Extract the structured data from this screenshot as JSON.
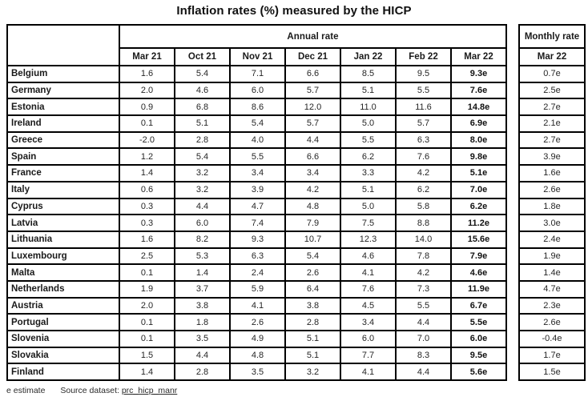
{
  "title": "Inflation rates (%) measured by the HICP",
  "annual": {
    "group_header": "Annual rate",
    "columns": [
      "Mar 21",
      "Oct 21",
      "Nov 21",
      "Dec 21",
      "Jan 22",
      "Feb 22",
      "Mar 22"
    ]
  },
  "monthly": {
    "group_header": "Monthly rate",
    "column": "Mar 22"
  },
  "rows": [
    {
      "country": "Belgium",
      "annual": [
        "1.6",
        "5.4",
        "7.1",
        "6.6",
        "8.5",
        "9.5",
        "9.3e"
      ],
      "monthly": "0.7e"
    },
    {
      "country": "Germany",
      "annual": [
        "2.0",
        "4.6",
        "6.0",
        "5.7",
        "5.1",
        "5.5",
        "7.6e"
      ],
      "monthly": "2.5e"
    },
    {
      "country": "Estonia",
      "annual": [
        "0.9",
        "6.8",
        "8.6",
        "12.0",
        "11.0",
        "11.6",
        "14.8e"
      ],
      "monthly": "2.7e"
    },
    {
      "country": "Ireland",
      "annual": [
        "0.1",
        "5.1",
        "5.4",
        "5.7",
        "5.0",
        "5.7",
        "6.9e"
      ],
      "monthly": "2.1e"
    },
    {
      "country": "Greece",
      "annual": [
        "-2.0",
        "2.8",
        "4.0",
        "4.4",
        "5.5",
        "6.3",
        "8.0e"
      ],
      "monthly": "2.7e"
    },
    {
      "country": "Spain",
      "annual": [
        "1.2",
        "5.4",
        "5.5",
        "6.6",
        "6.2",
        "7.6",
        "9.8e"
      ],
      "monthly": "3.9e"
    },
    {
      "country": "France",
      "annual": [
        "1.4",
        "3.2",
        "3.4",
        "3.4",
        "3.3",
        "4.2",
        "5.1e"
      ],
      "monthly": "1.6e"
    },
    {
      "country": "Italy",
      "annual": [
        "0.6",
        "3.2",
        "3.9",
        "4.2",
        "5.1",
        "6.2",
        "7.0e"
      ],
      "monthly": "2.6e"
    },
    {
      "country": "Cyprus",
      "annual": [
        "0.3",
        "4.4",
        "4.7",
        "4.8",
        "5.0",
        "5.8",
        "6.2e"
      ],
      "monthly": "1.8e"
    },
    {
      "country": "Latvia",
      "annual": [
        "0.3",
        "6.0",
        "7.4",
        "7.9",
        "7.5",
        "8.8",
        "11.2e"
      ],
      "monthly": "3.0e"
    },
    {
      "country": "Lithuania",
      "annual": [
        "1.6",
        "8.2",
        "9.3",
        "10.7",
        "12.3",
        "14.0",
        "15.6e"
      ],
      "monthly": "2.4e"
    },
    {
      "country": "Luxembourg",
      "annual": [
        "2.5",
        "5.3",
        "6.3",
        "5.4",
        "4.6",
        "7.8",
        "7.9e"
      ],
      "monthly": "1.9e"
    },
    {
      "country": "Malta",
      "annual": [
        "0.1",
        "1.4",
        "2.4",
        "2.6",
        "4.1",
        "4.2",
        "4.6e"
      ],
      "monthly": "1.4e"
    },
    {
      "country": "Netherlands",
      "annual": [
        "1.9",
        "3.7",
        "5.9",
        "6.4",
        "7.6",
        "7.3",
        "11.9e"
      ],
      "monthly": "4.7e"
    },
    {
      "country": "Austria",
      "annual": [
        "2.0",
        "3.8",
        "4.1",
        "3.8",
        "4.5",
        "5.5",
        "6.7e"
      ],
      "monthly": "2.3e"
    },
    {
      "country": "Portugal",
      "annual": [
        "0.1",
        "1.8",
        "2.6",
        "2.8",
        "3.4",
        "4.4",
        "5.5e"
      ],
      "monthly": "2.6e"
    },
    {
      "country": "Slovenia",
      "annual": [
        "0.1",
        "3.5",
        "4.9",
        "5.1",
        "6.0",
        "7.0",
        "6.0e"
      ],
      "monthly": "-0.4e"
    },
    {
      "country": "Slovakia",
      "annual": [
        "1.5",
        "4.4",
        "4.8",
        "5.1",
        "7.7",
        "8.3",
        "9.5e"
      ],
      "monthly": "1.7e"
    },
    {
      "country": "Finland",
      "annual": [
        "1.4",
        "2.8",
        "3.5",
        "3.2",
        "4.1",
        "4.4",
        "5.6e"
      ],
      "monthly": "1.5e"
    }
  ],
  "footer": {
    "estimate_note": "e estimate",
    "source_label": "Source dataset:",
    "source_link": "prc_hicp_manr"
  }
}
